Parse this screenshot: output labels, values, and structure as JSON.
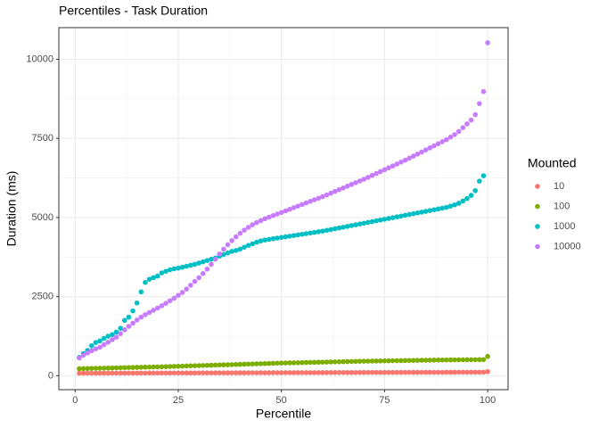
{
  "chart_data": {
    "type": "scatter",
    "title": "Percentiles - Task Duration",
    "x_label": "Percentile",
    "y_label": "Duration (ms)",
    "legend_title": "Mounted",
    "legend_position": "right",
    "grid": true,
    "xlim": [
      -3.95,
      104.95
    ],
    "xticks": [
      0,
      25,
      50,
      75,
      100
    ],
    "xminor": [
      12.5,
      37.5,
      62.5,
      87.5
    ],
    "ylim": [
      -440,
      11000
    ],
    "yticks": [
      0,
      2500,
      5000,
      7500,
      10000
    ],
    "yminor": [
      1250,
      3750,
      6250,
      8750
    ],
    "x": [
      1,
      2,
      3,
      4,
      5,
      6,
      7,
      8,
      9,
      10,
      11,
      12,
      13,
      14,
      15,
      16,
      17,
      18,
      19,
      20,
      21,
      22,
      23,
      24,
      25,
      26,
      27,
      28,
      29,
      30,
      31,
      32,
      33,
      34,
      35,
      36,
      37,
      38,
      39,
      40,
      41,
      42,
      43,
      44,
      45,
      46,
      47,
      48,
      49,
      50,
      51,
      52,
      53,
      54,
      55,
      56,
      57,
      58,
      59,
      60,
      61,
      62,
      63,
      64,
      65,
      66,
      67,
      68,
      69,
      70,
      71,
      72,
      73,
      74,
      75,
      76,
      77,
      78,
      79,
      80,
      81,
      82,
      83,
      84,
      85,
      86,
      87,
      88,
      89,
      90,
      91,
      92,
      93,
      94,
      95,
      96,
      97,
      98,
      99,
      100
    ],
    "series": [
      {
        "name": "10",
        "color": "#F8766D",
        "values": [
          80,
          80,
          81,
          81,
          81,
          82,
          82,
          82,
          83,
          83,
          83,
          84,
          84,
          84,
          85,
          85,
          85,
          86,
          86,
          86,
          87,
          87,
          87,
          88,
          88,
          88,
          89,
          89,
          89,
          90,
          90,
          90,
          91,
          91,
          91,
          92,
          92,
          92,
          93,
          93,
          93,
          94,
          94,
          94,
          95,
          95,
          95,
          96,
          96,
          96,
          97,
          97,
          97,
          98,
          98,
          98,
          99,
          99,
          99,
          100,
          100,
          100,
          101,
          101,
          101,
          102,
          102,
          102,
          103,
          103,
          103,
          104,
          104,
          104,
          105,
          105,
          105,
          106,
          106,
          106,
          107,
          107,
          107,
          108,
          108,
          108,
          109,
          109,
          109,
          110,
          110,
          110,
          111,
          111,
          111,
          112,
          112,
          112,
          113,
          130
        ]
      },
      {
        "name": "100",
        "color": "#7CAE00",
        "values": [
          223,
          226,
          229,
          232,
          235,
          238,
          241,
          244,
          247,
          250,
          253,
          256,
          259,
          262,
          265,
          268,
          271,
          274,
          277,
          280,
          284,
          288,
          292,
          296,
          300,
          304,
          308,
          312,
          316,
          320,
          324,
          328,
          332,
          336,
          340,
          344,
          348,
          352,
          356,
          360,
          364,
          368,
          372,
          376,
          380,
          384,
          388,
          392,
          396,
          400,
          403,
          406,
          409,
          412,
          415,
          418,
          421,
          424,
          427,
          430,
          433,
          436,
          439,
          442,
          445,
          448,
          451,
          454,
          457,
          460,
          462,
          464,
          466,
          468,
          470,
          472,
          474,
          476,
          478,
          480,
          482,
          484,
          486,
          488,
          490,
          492,
          494,
          496,
          498,
          500,
          501,
          502,
          503,
          504,
          505,
          506,
          507,
          508,
          509,
          610
        ]
      },
      {
        "name": "1000",
        "color": "#00BFC4",
        "values": [
          580,
          700,
          800,
          950,
          1050,
          1100,
          1180,
          1250,
          1300,
          1380,
          1500,
          1750,
          1850,
          2050,
          2300,
          2650,
          2950,
          3050,
          3100,
          3150,
          3250,
          3300,
          3350,
          3380,
          3400,
          3430,
          3460,
          3490,
          3520,
          3560,
          3600,
          3640,
          3680,
          3720,
          3780,
          3830,
          3880,
          3930,
          3960,
          4000,
          4060,
          4120,
          4170,
          4220,
          4260,
          4290,
          4310,
          4330,
          4350,
          4370,
          4390,
          4410,
          4430,
          4450,
          4470,
          4490,
          4510,
          4530,
          4550,
          4570,
          4595,
          4620,
          4645,
          4670,
          4695,
          4720,
          4745,
          4770,
          4795,
          4820,
          4845,
          4870,
          4895,
          4920,
          4945,
          4970,
          4995,
          5020,
          5045,
          5070,
          5095,
          5120,
          5145,
          5170,
          5195,
          5220,
          5245,
          5270,
          5295,
          5320,
          5360,
          5400,
          5450,
          5520,
          5600,
          5700,
          5850,
          6150,
          6320,
          null
        ]
      },
      {
        "name": "10000",
        "color": "#C77CFF",
        "values": [
          560,
          650,
          720,
          790,
          850,
          900,
          980,
          1060,
          1140,
          1220,
          1330,
          1450,
          1560,
          1660,
          1760,
          1850,
          1930,
          2000,
          2070,
          2140,
          2210,
          2290,
          2370,
          2450,
          2540,
          2630,
          2740,
          2860,
          2980,
          3100,
          3230,
          3370,
          3520,
          3680,
          3850,
          4000,
          4140,
          4270,
          4390,
          4500,
          4600,
          4690,
          4770,
          4840,
          4900,
          4960,
          5010,
          5060,
          5110,
          5160,
          5210,
          5260,
          5310,
          5360,
          5410,
          5460,
          5510,
          5560,
          5610,
          5660,
          5715,
          5770,
          5825,
          5880,
          5935,
          5990,
          6045,
          6100,
          6155,
          6210,
          6270,
          6330,
          6390,
          6450,
          6510,
          6570,
          6630,
          6690,
          6750,
          6810,
          6875,
          6940,
          7005,
          7070,
          7135,
          7200,
          7265,
          7330,
          7395,
          7460,
          7540,
          7620,
          7720,
          7840,
          7960,
          8080,
          8250,
          8600,
          8980,
          10520
        ]
      }
    ]
  }
}
